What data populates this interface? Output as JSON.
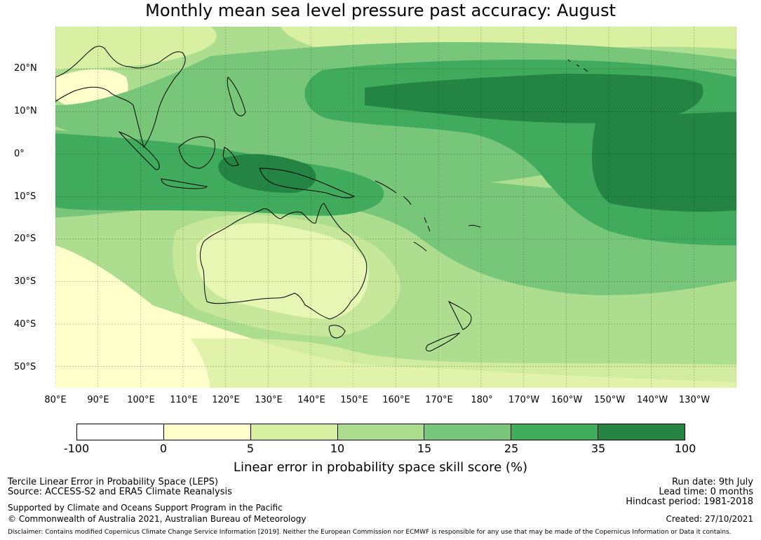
{
  "title": "Monthly mean sea level pressure past accuracy: August",
  "map": {
    "extent": {
      "lon": [
        80,
        240
      ],
      "lat": [
        -55,
        30
      ]
    },
    "lat_labels": [
      "20°N",
      "10°N",
      "0°",
      "10°S",
      "20°S",
      "30°S",
      "40°S",
      "50°S"
    ],
    "lon_labels": [
      "80°E",
      "90°E",
      "100°E",
      "110°E",
      "120°E",
      "130°E",
      "140°E",
      "150°E",
      "160°E",
      "170°E",
      "180°",
      "170°W",
      "160°W",
      "150°W",
      "140°W",
      "130°W"
    ],
    "grid": true
  },
  "colorbar": {
    "ticks": [
      "-100",
      "0",
      "5",
      "10",
      "15",
      "25",
      "35",
      "100"
    ],
    "colors": [
      "#ffffff",
      "#ffffcc",
      "#d9f0a3",
      "#addd8e",
      "#78c679",
      "#41ab5d",
      "#238443"
    ],
    "label": "Linear error in probability space skill score (%)"
  },
  "footer": {
    "method": "Tercile Linear Error in Probability Space (LEPS)",
    "source": "Source: ACCESS-S2 and ERA5 Climate Reanalysis",
    "support": "Supported by Climate and Oceans Support Program in the Pacific",
    "copyright": "© Commonwealth of Australia 2021, Australian Bureau of Meteorology",
    "run_date": "Run date: 9th July",
    "lead_time": "Lead time: 0 months",
    "hindcast": "Hindcast period: 1981-2018",
    "created": "Created: 27/10/2021",
    "disclaimer": "Disclaimer: Contains modified Copernicus Climate Change Service Information [2019]. Neither the European Commission nor ECMWF is responsible for any use that may be made of the Copernicus Information or Data it contains."
  }
}
